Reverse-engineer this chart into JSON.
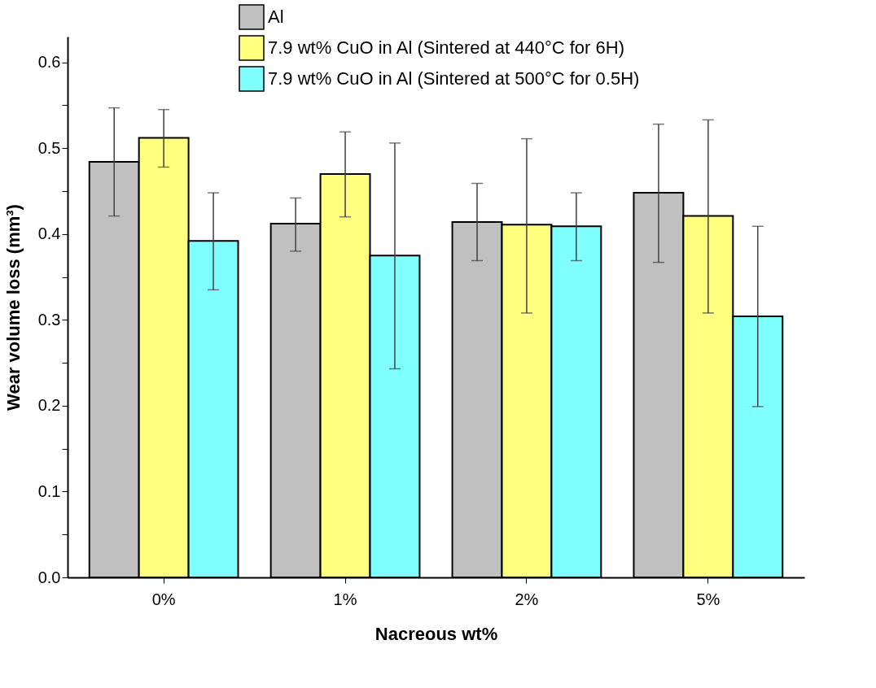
{
  "chart_data": {
    "type": "bar",
    "xlabel": "Nacreous wt%",
    "ylabel": "Wear volume loss (mm³)",
    "categories": [
      "0%",
      "1%",
      "2%",
      "5%"
    ],
    "series": [
      {
        "name": "Al",
        "color": "#c0c0c0",
        "values": [
          0.484,
          0.412,
          0.414,
          0.448
        ],
        "errors": [
          [
            0.421,
            0.547
          ],
          [
            0.38,
            0.442
          ],
          [
            0.369,
            0.459
          ],
          [
            0.367,
            0.528
          ]
        ]
      },
      {
        "name": "7.9 wt% CuO in Al (Sintered at 440°C for 6H)",
        "color": "#ffff80",
        "values": [
          0.512,
          0.47,
          0.411,
          0.421
        ],
        "errors": [
          [
            0.478,
            0.545
          ],
          [
            0.42,
            0.519
          ],
          [
            0.308,
            0.511
          ],
          [
            0.308,
            0.533
          ]
        ]
      },
      {
        "name": "7.9 wt% CuO in Al (Sintered at 500°C for 0.5H)",
        "color": "#80ffff",
        "values": [
          0.392,
          0.375,
          0.409,
          0.304
        ],
        "errors": [
          [
            0.335,
            0.448
          ],
          [
            0.243,
            0.506
          ],
          [
            0.369,
            0.448
          ],
          [
            0.199,
            0.409
          ]
        ]
      }
    ],
    "ylim": [
      0,
      0.63
    ],
    "yticks": [
      {
        "value": 0,
        "label": "0.0"
      },
      {
        "value": 0.05,
        "label": null
      },
      0.1,
      {
        "value": 0.15,
        "label": null
      },
      0.2,
      {
        "value": 0.25,
        "label": null
      },
      0.3,
      {
        "value": 0.35,
        "label": null
      },
      0.4,
      {
        "value": 0.45,
        "label": null
      },
      0.5,
      {
        "value": 0.55,
        "label": null
      },
      0.6
    ],
    "grid": false,
    "legend": "top left"
  }
}
